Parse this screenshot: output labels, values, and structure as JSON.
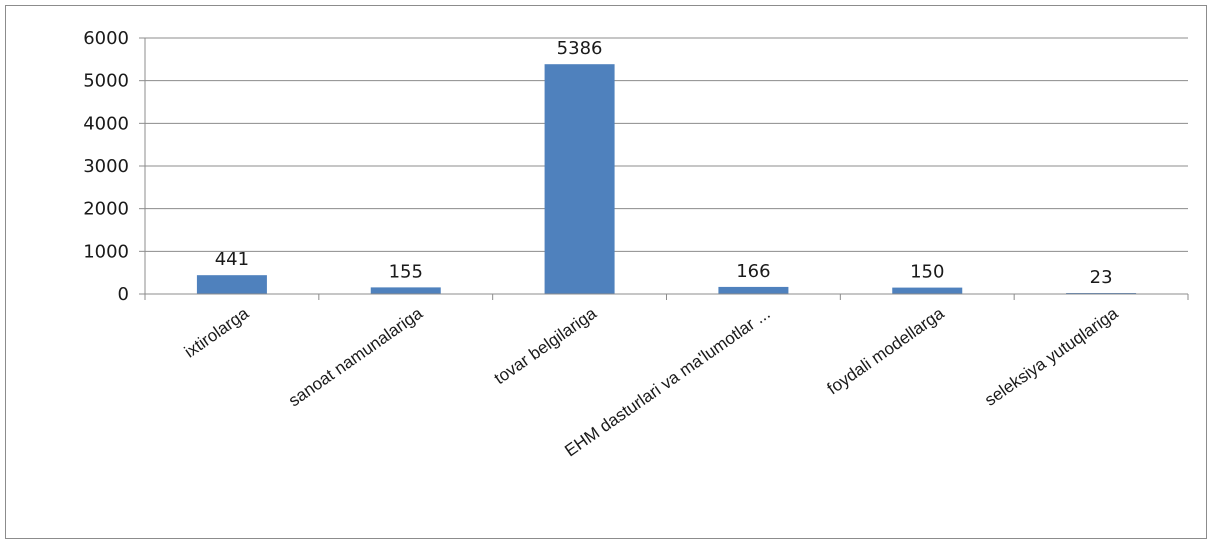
{
  "chart_data": {
    "type": "bar",
    "categories": [
      "ixtirolarga",
      "sanoat  namunalariga",
      "tovar belgilariga",
      "EHM  dasturlari va ma'lumotlar ...",
      "foydali  modellarga",
      "seleksiya yutuqlariga"
    ],
    "values": [
      441,
      155,
      5386,
      166,
      150,
      23
    ],
    "data_labels": [
      "441",
      "155",
      "5386",
      "166",
      "150",
      "23"
    ],
    "title": "",
    "xlabel": "",
    "ylabel": "",
    "ylim": [
      0,
      6000
    ],
    "yticks": [
      "0",
      "1000",
      "2000",
      "3000",
      "4000",
      "5000",
      "6000"
    ],
    "grid": true,
    "legend": "none",
    "colors": {
      "bar": "#4f81bd",
      "grid": "#8c8c8c",
      "axis": "#8c8c8c",
      "frame": "#8c8c8c"
    }
  }
}
